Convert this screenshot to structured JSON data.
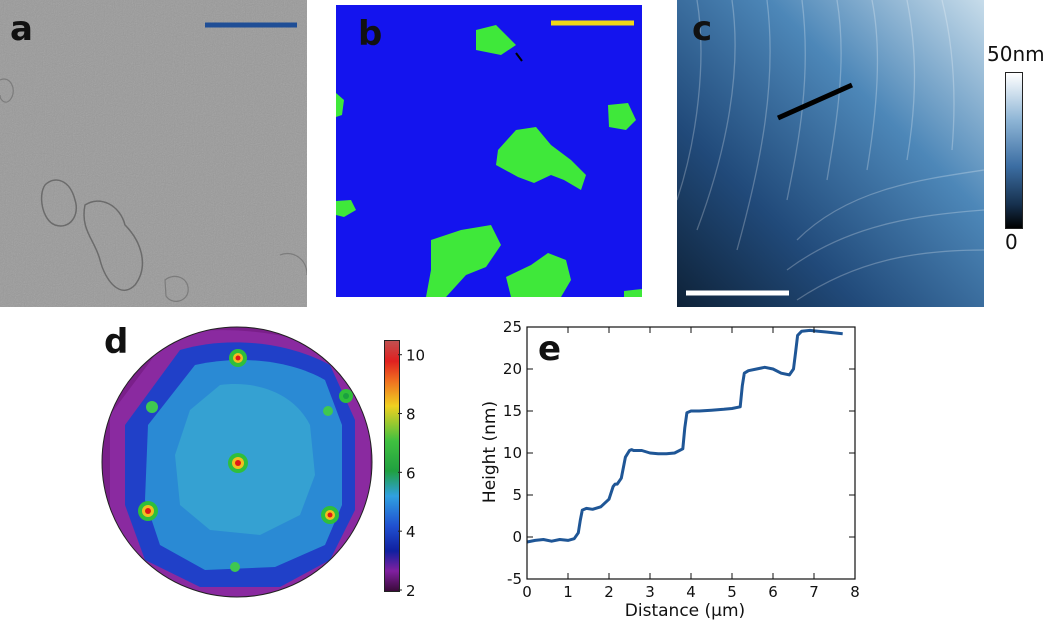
{
  "figure": {
    "panel_labels": {
      "a": "a",
      "b": "b",
      "c": "c",
      "d": "d",
      "e": "e"
    },
    "colorbar_c": {
      "max_label": "50nm",
      "min_label": "0"
    },
    "colorbar_d": {
      "ticks": [
        10,
        8,
        6,
        4,
        2
      ]
    },
    "colors": {
      "tem_bg": "#9a9a9a",
      "phase_blue": "#1414ee",
      "phase_green": "#3fe83a",
      "scale_blue": "#1f4e96",
      "scale_yellow": "#f0d818",
      "scale_white": "#ffffff",
      "profile_line": "#1f5696"
    }
  },
  "chart_data": {
    "type": "line",
    "xlabel": "Distance (µm)",
    "ylabel": "Height (nm)",
    "xlim": [
      0,
      8
    ],
    "ylim": [
      -5,
      25
    ],
    "xticks": [
      0,
      1,
      2,
      3,
      4,
      5,
      6,
      7,
      8
    ],
    "yticks": [
      -5,
      0,
      5,
      10,
      15,
      20,
      25
    ],
    "grid": false,
    "series": [
      {
        "x": [
          0.0,
          0.2,
          0.4,
          0.6,
          0.8,
          1.0,
          1.15,
          1.25,
          1.3,
          1.35,
          1.45,
          1.6,
          1.8,
          2.0,
          2.1,
          2.15,
          2.2,
          2.3,
          2.4,
          2.5,
          2.55,
          2.6,
          2.8,
          3.0,
          3.2,
          3.4,
          3.6,
          3.8,
          3.85,
          3.9,
          4.0,
          4.2,
          4.5,
          4.8,
          5.0,
          5.2,
          5.25,
          5.3,
          5.4,
          5.6,
          5.8,
          6.0,
          6.2,
          6.4,
          6.5,
          6.55,
          6.6,
          6.7,
          6.9,
          7.1,
          7.3,
          7.5,
          7.7
        ],
        "y": [
          -0.6,
          -0.4,
          -0.3,
          -0.5,
          -0.3,
          -0.4,
          -0.2,
          0.5,
          2.0,
          3.2,
          3.4,
          3.3,
          3.6,
          4.5,
          6.0,
          6.3,
          6.3,
          7.0,
          9.5,
          10.3,
          10.4,
          10.3,
          10.3,
          10.0,
          9.9,
          9.9,
          10.0,
          10.5,
          13.0,
          14.8,
          15.0,
          15.0,
          15.1,
          15.2,
          15.3,
          15.5,
          18.0,
          19.5,
          19.8,
          20.0,
          20.2,
          20.0,
          19.5,
          19.3,
          20.0,
          22.0,
          24.0,
          24.5,
          24.6,
          24.5,
          24.4,
          24.3,
          24.2
        ]
      }
    ]
  }
}
